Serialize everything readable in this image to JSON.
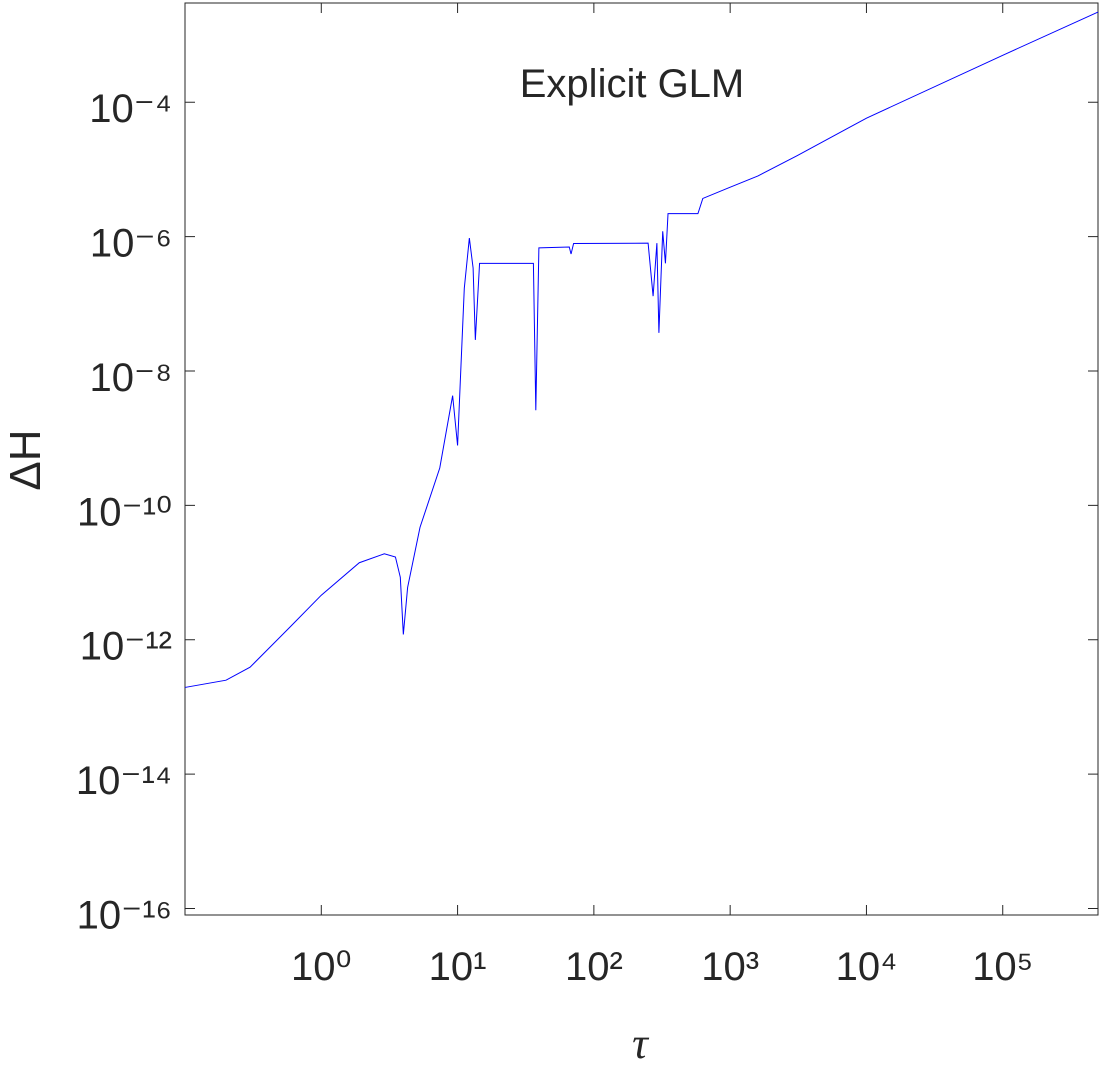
{
  "chart_data": {
    "type": "line",
    "title": "Explicit GLM",
    "x_label": "τ",
    "y_label": "ΔH",
    "log_x": true,
    "log_y": true,
    "grid": false,
    "box": true,
    "xlim": [
      0.1,
      500000
    ],
    "ylim": [
      8e-17,
      0.003
    ],
    "xticks": [
      {
        "value": 1,
        "label": "10⁰"
      },
      {
        "value": 10,
        "label": "10¹"
      },
      {
        "value": 100,
        "label": "10²"
      },
      {
        "value": 1000,
        "label": "10³"
      },
      {
        "value": 10000,
        "label": "10⁴"
      },
      {
        "value": 100000,
        "label": "10⁵"
      }
    ],
    "yticks": [
      {
        "value": 1e-16,
        "label": "10⁻¹⁶"
      },
      {
        "value": 1e-14,
        "label": "10⁻¹⁴"
      },
      {
        "value": 1e-12,
        "label": "10⁻¹²"
      },
      {
        "value": 1e-10,
        "label": "10⁻¹⁰"
      },
      {
        "value": 1e-08,
        "label": "10⁻⁸"
      },
      {
        "value": 1e-06,
        "label": "10⁻⁶"
      },
      {
        "value": 0.0001,
        "label": "10⁻⁴"
      }
    ],
    "x": [
      0.1,
      0.2,
      0.3,
      0.6,
      1,
      1.9,
      2.9,
      3.5,
      3.8,
      4.0,
      4.3,
      5.3,
      7.4,
      9.2,
      10,
      10.5,
      11.2,
      12.2,
      13,
      13.5,
      14.5,
      36,
      37.5,
      39.5,
      66,
      68,
      71,
      250,
      272,
      290,
      300,
      320,
      335,
      350,
      580,
      630,
      970,
      1600,
      3100,
      10000,
      100000,
      500000
    ],
    "series": [
      {
        "name": "ΔH",
        "color": "#0000ff",
        "values": [
          1.95e-13,
          2.5e-13,
          3.9e-13,
          1.6e-12,
          4.6e-12,
          1.4e-11,
          1.9e-11,
          1.7e-11,
          8.5e-12,
          1.2e-12,
          6e-12,
          4.7e-11,
          3.6e-10,
          4.3e-09,
          7.8e-10,
          8e-09,
          1.7e-07,
          9.5e-07,
          3.4e-07,
          2.9e-08,
          4e-07,
          4e-07,
          2.6e-09,
          6.8e-07,
          7e-07,
          5.5e-07,
          7.9e-07,
          8e-07,
          1.3e-07,
          8e-07,
          3.7e-08,
          1.2e-06,
          4e-07,
          2.2e-06,
          2.2e-06,
          3.7e-06,
          5.3e-06,
          8e-06,
          1.6e-05,
          5.8e-05,
          0.0005,
          0.0022
        ]
      }
    ]
  }
}
